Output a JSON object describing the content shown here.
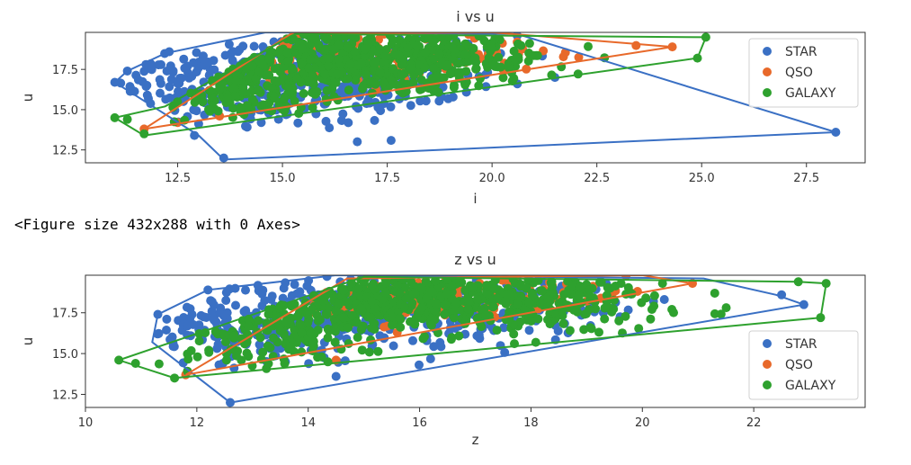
{
  "colors": {
    "STAR": "#3a70c4",
    "QSO": "#e8692a",
    "GALAXY": "#2ea12e"
  },
  "figure_message": "<Figure size 432x288 with 0 Axes>",
  "chart_data": [
    {
      "type": "scatter",
      "title": "i vs u",
      "xlabel": "i",
      "ylabel": "u",
      "xlim": [
        10.3,
        28.9
      ],
      "ylim": [
        11.7,
        19.8
      ],
      "xticks": [
        "12.5",
        "15.0",
        "17.5",
        "20.0",
        "22.5",
        "25.0",
        "27.5"
      ],
      "yticks": [
        "12.5",
        "15.0",
        "17.5"
      ],
      "legend_position": "top-right",
      "series": [
        {
          "name": "STAR",
          "hull": [
            [
              13.6,
              11.9
            ],
            [
              28.2,
              13.6
            ],
            [
              20.6,
              19.7
            ],
            [
              14.6,
              19.8
            ],
            [
              12.2,
              18.5
            ],
            [
              11.3,
              17.4
            ],
            [
              11.0,
              16.7
            ],
            [
              13.0,
              13.4
            ]
          ],
          "cloud": [
            {
              "cx": 15.0,
              "cy": 17.0,
              "sx": 1.8,
              "sy": 1.6,
              "n": 260
            },
            {
              "cx": 17.5,
              "cy": 17.8,
              "sx": 1.5,
              "sy": 1.3,
              "n": 120
            },
            {
              "cx": 12.6,
              "cy": 16.8,
              "sx": 0.7,
              "sy": 1.2,
              "n": 60
            }
          ],
          "points": [
            [
              28.2,
              13.6
            ],
            [
              13.6,
              12.0
            ],
            [
              21.5,
              17.0
            ],
            [
              18.8,
              15.8
            ],
            [
              11.0,
              16.7
            ],
            [
              11.3,
              17.4
            ],
            [
              12.9,
              13.4
            ],
            [
              20.6,
              19.6
            ],
            [
              12.3,
              18.6
            ]
          ]
        },
        {
          "name": "QSO",
          "hull": [
            [
              11.7,
              13.8
            ],
            [
              24.3,
              18.9
            ],
            [
              20.0,
              19.8
            ],
            [
              15.2,
              19.7
            ]
          ],
          "cloud": [
            {
              "cx": 17.5,
              "cy": 18.2,
              "sx": 2.0,
              "sy": 0.9,
              "n": 140
            }
          ],
          "points": [
            [
              24.3,
              18.9
            ],
            [
              11.7,
              13.8
            ],
            [
              12.5,
              14.2
            ],
            [
              13.5,
              14.6
            ],
            [
              20.6,
              19.2
            ]
          ]
        },
        {
          "name": "GALAXY",
          "hull": [
            [
              11.7,
              13.4
            ],
            [
              24.9,
              18.2
            ],
            [
              25.1,
              19.5
            ],
            [
              15.3,
              19.7
            ],
            [
              12.2,
              15.2
            ],
            [
              11.0,
              14.5
            ]
          ],
          "cloud": [
            {
              "cx": 16.6,
              "cy": 18.2,
              "sx": 2.2,
              "sy": 1.1,
              "n": 560
            },
            {
              "cx": 14.0,
              "cy": 16.2,
              "sx": 1.1,
              "sy": 1.1,
              "n": 140
            }
          ],
          "points": [
            [
              25.1,
              19.5
            ],
            [
              24.9,
              18.2
            ],
            [
              11.0,
              14.5
            ],
            [
              11.3,
              14.4
            ],
            [
              11.7,
              13.5
            ],
            [
              20.0,
              18.8
            ]
          ]
        }
      ]
    },
    {
      "type": "scatter",
      "title": "z vs u",
      "xlabel": "z",
      "ylabel": "u",
      "xlim": [
        10.0,
        24.0
      ],
      "ylim": [
        11.7,
        19.8
      ],
      "xticks": [
        "10",
        "12",
        "14",
        "16",
        "18",
        "20",
        "22"
      ],
      "yticks": [
        "12.5",
        "15.0",
        "17.5"
      ],
      "legend_position": "lower-right",
      "series": [
        {
          "name": "STAR",
          "hull": [
            [
              12.6,
              12.0
            ],
            [
              22.9,
              18.0
            ],
            [
              22.4,
              18.6
            ],
            [
              21.1,
              19.6
            ],
            [
              14.5,
              19.8
            ],
            [
              12.2,
              18.9
            ],
            [
              11.3,
              17.4
            ],
            [
              11.2,
              15.7
            ]
          ],
          "cloud": [
            {
              "cx": 14.3,
              "cy": 17.3,
              "sx": 1.4,
              "sy": 1.4,
              "n": 240
            },
            {
              "cx": 17.0,
              "cy": 18.0,
              "sx": 1.5,
              "sy": 1.0,
              "n": 120
            },
            {
              "cx": 12.2,
              "cy": 16.5,
              "sx": 0.5,
              "sy": 1.0,
              "n": 50
            }
          ],
          "points": [
            [
              22.9,
              18.0
            ],
            [
              22.5,
              18.6
            ],
            [
              12.6,
              12.0
            ],
            [
              14.5,
              13.6
            ],
            [
              11.3,
              17.4
            ],
            [
              12.2,
              18.9
            ],
            [
              20.2,
              18.2
            ],
            [
              19.3,
              17.5
            ]
          ]
        },
        {
          "name": "QSO",
          "hull": [
            [
              11.8,
              13.7
            ],
            [
              20.9,
              19.3
            ],
            [
              20.0,
              19.8
            ],
            [
              14.7,
              19.6
            ]
          ],
          "cloud": [
            {
              "cx": 17.0,
              "cy": 18.3,
              "sx": 1.7,
              "sy": 0.8,
              "n": 140
            }
          ],
          "points": [
            [
              20.9,
              19.3
            ],
            [
              11.8,
              13.7
            ],
            [
              14.5,
              14.6
            ],
            [
              18.7,
              17.8
            ],
            [
              19.4,
              18.7
            ]
          ]
        },
        {
          "name": "GALAXY",
          "hull": [
            [
              11.6,
              13.5
            ],
            [
              23.2,
              17.2
            ],
            [
              23.3,
              19.3
            ],
            [
              22.8,
              19.4
            ],
            [
              15.0,
              19.7
            ],
            [
              10.6,
              14.6
            ]
          ],
          "cloud": [
            {
              "cx": 16.2,
              "cy": 18.3,
              "sx": 1.9,
              "sy": 1.0,
              "n": 540
            },
            {
              "cx": 13.3,
              "cy": 16.3,
              "sx": 0.9,
              "sy": 1.1,
              "n": 140
            }
          ],
          "points": [
            [
              23.3,
              19.3
            ],
            [
              23.2,
              17.2
            ],
            [
              22.8,
              19.4
            ],
            [
              21.3,
              18.7
            ],
            [
              10.6,
              14.6
            ],
            [
              10.9,
              14.4
            ],
            [
              11.6,
              13.5
            ]
          ]
        }
      ]
    }
  ]
}
